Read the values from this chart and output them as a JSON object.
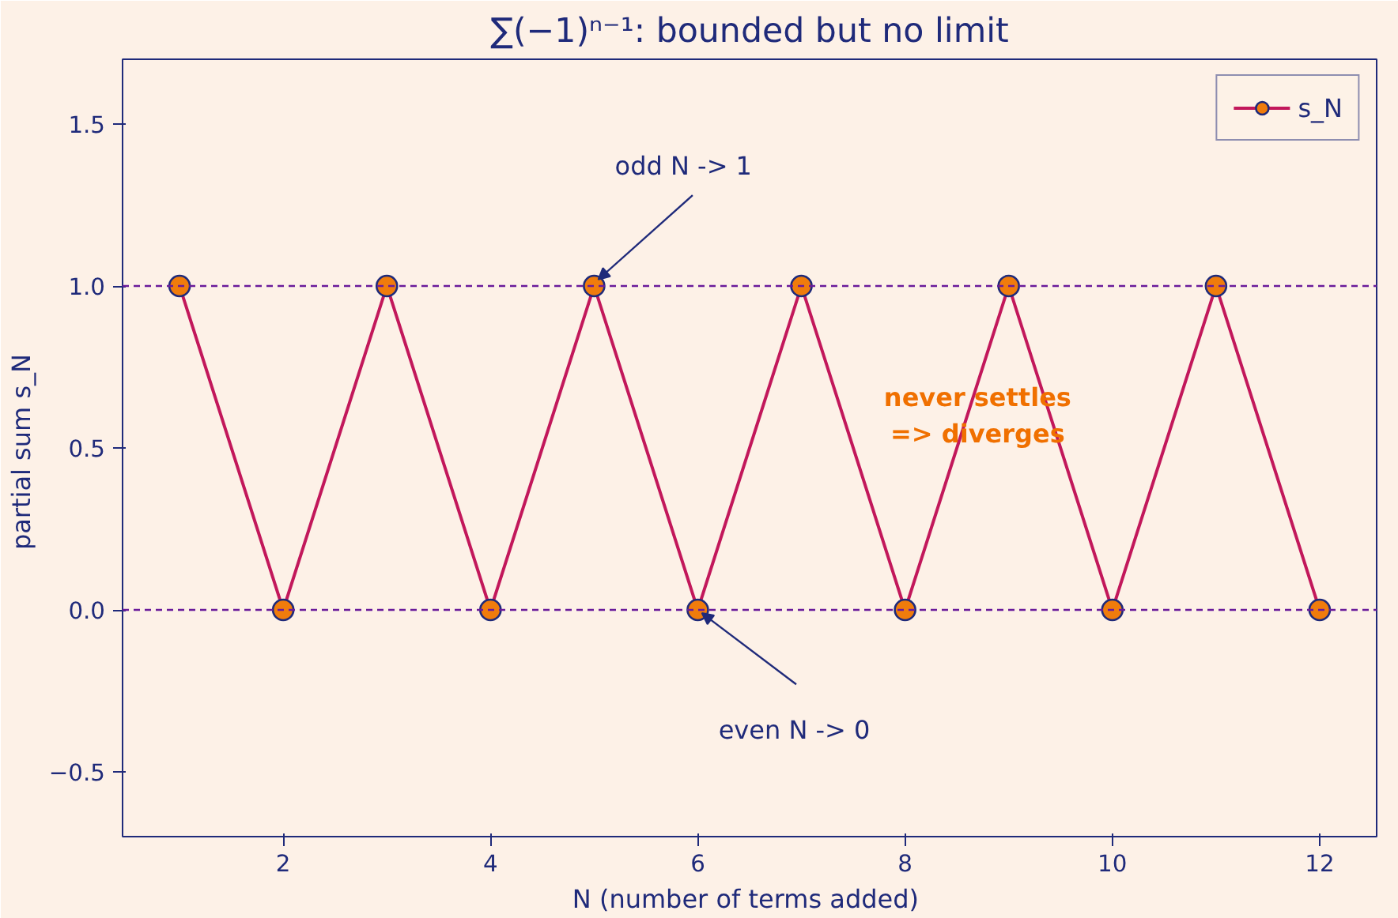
{
  "chart_data": {
    "type": "line",
    "title": "∑(−1)ⁿ⁻¹: bounded but no limit",
    "xlabel": "N  (number of terms added)",
    "ylabel": "partial sum  s_N",
    "x": [
      1,
      2,
      3,
      4,
      5,
      6,
      7,
      8,
      9,
      10,
      11,
      12
    ],
    "series": [
      {
        "name": "s_N",
        "color": "#c2185b",
        "values": [
          1,
          0,
          1,
          0,
          1,
          0,
          1,
          0,
          1,
          0,
          1,
          0
        ]
      }
    ],
    "marker": "circle",
    "line_style": "solid",
    "legend": "top right",
    "grid": false,
    "xlim": [
      0.45,
      12.55
    ],
    "xticks": [
      2,
      4,
      6,
      8,
      10,
      12
    ],
    "ylim": [
      -0.7,
      1.7
    ],
    "yticks": [
      {
        "value": -0.5,
        "label": "−0.5"
      },
      {
        "value": 0,
        "label": "0.0"
      },
      {
        "value": 0.5,
        "label": "0.5"
      },
      {
        "value": 1,
        "label": "1.0"
      },
      {
        "value": 1.5,
        "label": "1.5"
      }
    ],
    "ref_lines": [
      {
        "axis": "y",
        "value": 1,
        "label": null,
        "color": "#6a1b9a",
        "line_style": "dashed"
      },
      {
        "axis": "y",
        "value": 0,
        "label": null,
        "color": "#6a1b9a",
        "line_style": "dashed"
      }
    ],
    "annotations": [
      {
        "text": "odd N -> 1",
        "x": 5,
        "y": 1
      },
      {
        "text": "even N -> 0",
        "x": 6,
        "y": 0
      },
      "never settles\n=> diverges"
    ]
  }
}
